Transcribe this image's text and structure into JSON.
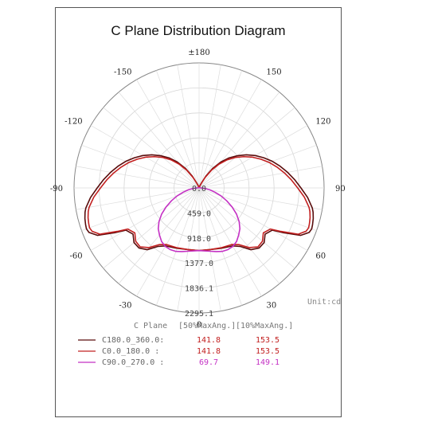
{
  "chart_data": {
    "type": "polar",
    "title": "C Plane Distribution Diagram",
    "unit_label": "Unit:cd",
    "angle_ticks": [
      "±180",
      "150",
      "120",
      "90",
      "60",
      "30",
      "0",
      "-30",
      "-60",
      "-90",
      "-120",
      "-150"
    ],
    "radial_ticks": [
      "0.0",
      "459.0",
      "918.0",
      "1377.0",
      "1836.1",
      "2295.1"
    ],
    "radial_values": [
      0,
      459.0,
      918.0,
      1377.0,
      1836.1,
      2295.1
    ],
    "r_max": 2295.1,
    "grid": true,
    "table": {
      "headers": [
        "C Plane",
        "[50%MaxAng.]",
        "[10%MaxAng.]"
      ],
      "rows": [
        {
          "name": "C180.0_360.0:",
          "half": "141.8",
          "tenth": "153.5"
        },
        {
          "name": "C0.0_180.0  :",
          "half": "141.8",
          "tenth": "153.5"
        },
        {
          "name": "C90.0_270.0 :",
          "half": "69.7",
          "tenth": "149.1"
        }
      ]
    },
    "series": [
      {
        "name": "C180.0_360.0",
        "color": "#5a0d0d",
        "gamma": [
          0,
          10,
          20,
          30,
          35,
          40,
          45,
          50,
          55,
          60,
          62,
          65,
          68,
          70,
          72,
          75,
          78,
          80,
          85,
          90,
          95,
          100,
          105,
          110,
          115,
          120,
          125,
          130,
          135,
          140,
          145,
          150,
          155,
          160,
          170,
          180
        ],
        "values": [
          1150,
          1150,
          1180,
          1230,
          1310,
          1480,
          1560,
          1560,
          1480,
          1550,
          1750,
          2060,
          2180,
          2200,
          2190,
          2170,
          2140,
          2110,
          2000,
          1870,
          1760,
          1650,
          1540,
          1430,
          1310,
          1190,
          1060,
          920,
          780,
          620,
          440,
          250,
          90,
          40,
          10,
          0
        ]
      },
      {
        "name": "C0.0_180.0",
        "color": "#c22020",
        "gamma": [
          0,
          10,
          20,
          30,
          35,
          40,
          45,
          50,
          55,
          60,
          62,
          65,
          68,
          70,
          72,
          75,
          78,
          80,
          85,
          90,
          95,
          100,
          105,
          110,
          115,
          120,
          125,
          130,
          135,
          140,
          145,
          150,
          155,
          160,
          170,
          180
        ],
        "values": [
          1150,
          1150,
          1170,
          1200,
          1270,
          1430,
          1530,
          1520,
          1440,
          1510,
          1700,
          2010,
          2120,
          2140,
          2130,
          2110,
          2080,
          2050,
          1940,
          1810,
          1700,
          1590,
          1480,
          1370,
          1250,
          1130,
          1000,
          870,
          730,
          570,
          400,
          220,
          80,
          35,
          10,
          0
        ]
      },
      {
        "name": "C90.0_270.0",
        "color": "#c431c4",
        "gamma": [
          0,
          5,
          10,
          15,
          20,
          25,
          30,
          35,
          40,
          45,
          50,
          55,
          60,
          65,
          70,
          75,
          80,
          85,
          90,
          100,
          120,
          140,
          160,
          180
        ],
        "values": [
          1150,
          1160,
          1180,
          1210,
          1240,
          1250,
          1240,
          1200,
          1130,
          1060,
          960,
          840,
          700,
          560,
          430,
          300,
          200,
          110,
          40,
          15,
          5,
          2,
          0,
          0
        ]
      }
    ]
  }
}
